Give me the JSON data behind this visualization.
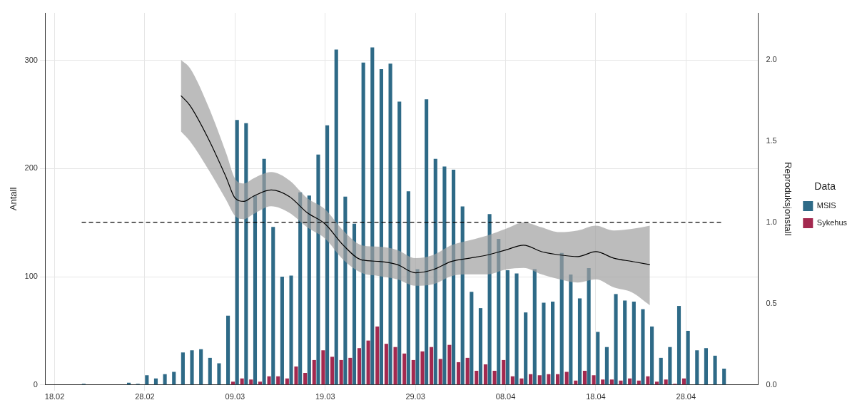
{
  "chart_data": {
    "type": "bar",
    "x": [
      "--02-21",
      "--02-22",
      "--02-23",
      "--02-24",
      "--02-25",
      "--02-26",
      "--02-27",
      "--02-28",
      "--02-29",
      "--03-01",
      "--03-02",
      "--03-03",
      "--03-04",
      "--03-05",
      "--03-06",
      "--03-07",
      "--03-08",
      "--03-09",
      "--03-10",
      "--03-11",
      "--03-12",
      "--03-13",
      "--03-14",
      "--03-15",
      "--03-16",
      "--03-17",
      "--03-18",
      "--03-19",
      "--03-20",
      "--03-21",
      "--03-22",
      "--03-23",
      "--03-24",
      "--03-25",
      "--03-26",
      "--03-27",
      "--03-28",
      "--03-29",
      "--03-30",
      "--03-31",
      "--04-01",
      "--04-02",
      "--04-03",
      "--04-04",
      "--04-05",
      "--04-06",
      "--04-07",
      "--04-08",
      "--04-09",
      "--04-10",
      "--04-11",
      "--04-12",
      "--04-13",
      "--04-14",
      "--04-15",
      "--04-16",
      "--04-17",
      "--04-18",
      "--04-19",
      "--04-20",
      "--04-21",
      "--04-22",
      "--04-23",
      "--04-24",
      "--04-25",
      "--04-26",
      "--04-27",
      "--04-28",
      "--04-29",
      "--04-30",
      "--05-01",
      "--05-02"
    ],
    "series": [
      {
        "name": "MSIS",
        "color": "#2e6a87",
        "values": [
          1,
          0,
          0,
          0,
          0,
          2,
          1,
          9,
          6,
          10,
          12,
          30,
          32,
          33,
          25,
          20,
          64,
          245,
          242,
          175,
          209,
          146,
          100,
          101,
          178,
          175,
          213,
          240,
          310,
          174,
          149,
          298,
          312,
          292,
          297,
          262,
          179,
          107,
          264,
          209,
          202,
          199,
          165,
          86,
          71,
          158,
          135,
          106,
          103,
          67,
          107,
          76,
          77,
          122,
          102,
          80,
          108,
          49,
          35,
          84,
          78,
          77,
          70,
          54,
          25,
          35,
          73,
          50,
          32,
          34,
          27,
          15
        ]
      },
      {
        "name": "Sykehus",
        "color": "#a3294f",
        "values": [
          0,
          0,
          0,
          0,
          0,
          0,
          0,
          0,
          0,
          0,
          0,
          0,
          0,
          0,
          0,
          0,
          0,
          3,
          6,
          5,
          3,
          8,
          8,
          6,
          17,
          11,
          23,
          32,
          26,
          23,
          25,
          34,
          41,
          54,
          38,
          35,
          29,
          23,
          31,
          35,
          24,
          37,
          21,
          25,
          13,
          19,
          13,
          23,
          8,
          6,
          10,
          9,
          10,
          10,
          12,
          4,
          13,
          9,
          5,
          5,
          4,
          6,
          4,
          8,
          3,
          5,
          1,
          6,
          0,
          0,
          0,
          0
        ]
      },
      {
        "type": "line",
        "axis": "y2",
        "color": "#000000",
        "x": [
          "--03-03",
          "--03-04",
          "--03-06",
          "--03-08",
          "--03-09",
          "--03-10",
          "--03-11",
          "--03-13",
          "--03-15",
          "--03-17",
          "--03-19",
          "--03-21",
          "--03-23",
          "--03-25",
          "--03-27",
          "--03-29",
          "--03-31",
          "--04-02",
          "--04-04",
          "--04-06",
          "--04-08",
          "--04-10",
          "--04-12",
          "--04-14",
          "--04-16",
          "--04-18",
          "--04-20",
          "--04-22",
          "--04-24"
        ],
        "values": [
          1.78,
          1.72,
          1.52,
          1.28,
          1.15,
          1.13,
          1.16,
          1.2,
          1.16,
          1.06,
          0.99,
          0.86,
          0.77,
          0.76,
          0.74,
          0.69,
          0.71,
          0.76,
          0.78,
          0.8,
          0.83,
          0.86,
          0.82,
          0.8,
          0.79,
          0.82,
          0.78,
          0.76,
          0.74
        ],
        "upper": [
          2.0,
          1.95,
          1.72,
          1.43,
          1.27,
          1.24,
          1.27,
          1.31,
          1.26,
          1.15,
          1.08,
          0.95,
          0.86,
          0.85,
          0.83,
          0.78,
          0.8,
          0.86,
          0.89,
          0.92,
          0.96,
          1.0,
          0.97,
          0.94,
          0.95,
          0.98,
          0.95,
          0.96,
          0.98
        ],
        "lower": [
          1.56,
          1.5,
          1.33,
          1.14,
          1.04,
          1.02,
          1.05,
          1.1,
          1.06,
          0.97,
          0.9,
          0.77,
          0.69,
          0.67,
          0.65,
          0.61,
          0.62,
          0.67,
          0.68,
          0.68,
          0.71,
          0.72,
          0.68,
          0.65,
          0.63,
          0.65,
          0.6,
          0.57,
          0.49
        ]
      }
    ],
    "ylabel": "Antall",
    "y2label": "Reproduksjonstall",
    "legend_title": "Data",
    "legend": "right",
    "grid": true,
    "xlim": [
      "--02-17",
      "--05-06"
    ],
    "xticks": [
      {
        "value": "--02-18",
        "label": "18.02"
      },
      {
        "value": "--02-28",
        "label": "28.02"
      },
      {
        "value": "--03-09",
        "label": "09.03"
      },
      {
        "value": "--03-19",
        "label": "19.03"
      },
      {
        "value": "--03-29",
        "label": "29.03"
      },
      {
        "value": "--04-08",
        "label": "08.04"
      },
      {
        "value": "--04-18",
        "label": "18.04"
      },
      {
        "value": "--04-28",
        "label": "28.04"
      }
    ],
    "ylim": [
      0,
      344
    ],
    "yticks": [
      0,
      100,
      200,
      300
    ],
    "y2lim": [
      0,
      2.29
    ],
    "y2ticks": [
      {
        "value": 0,
        "label": "0.0"
      },
      0.5,
      {
        "value": 1,
        "label": "1.0"
      },
      1.5,
      {
        "value": 2,
        "label": "2.0"
      }
    ],
    "ref_lines": [
      {
        "axis": "y2",
        "value": 1,
        "line_style": "dashed",
        "color": "#000000"
      }
    ]
  }
}
